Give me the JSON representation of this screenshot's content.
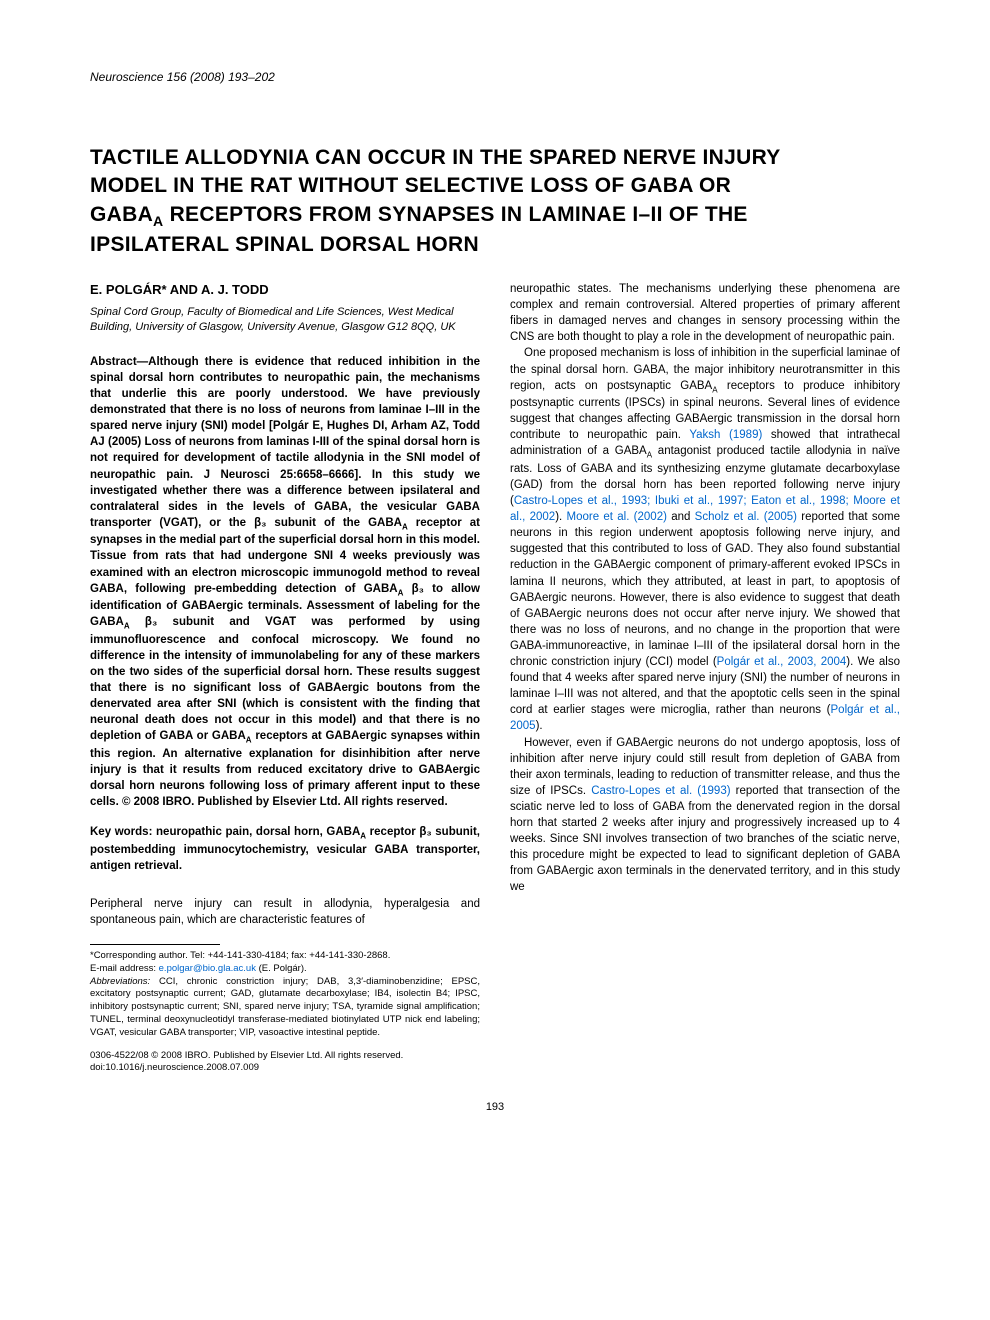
{
  "journal_info": "Neuroscience 156 (2008) 193–202",
  "title_line1": "TACTILE ALLODYNIA CAN OCCUR IN THE SPARED NERVE INJURY",
  "title_line2": "MODEL IN THE RAT WITHOUT SELECTIVE LOSS OF GABA OR",
  "title_line3_a": "GABA",
  "title_line3_sub": "A",
  "title_line3_b": " RECEPTORS FROM SYNAPSES IN LAMINAE I–II OF THE",
  "title_line4": "IPSILATERAL SPINAL DORSAL HORN",
  "authors": "E. POLGÁR* AND A. J. TODD",
  "affiliation": "Spinal Cord Group, Faculty of Biomedical and Life Sciences, West Medical Building, University of Glasgow, University Avenue, Glasgow G12 8QQ, UK",
  "abstract": "Abstract—Although there is evidence that reduced inhibition in the spinal dorsal horn contributes to neuropathic pain, the mechanisms that underlie this are poorly understood. We have previously demonstrated that there is no loss of neurons from laminae I–III in the spared nerve injury (SNI) model [Polgár E, Hughes DI, Arham AZ, Todd AJ (2005) Loss of neurons from laminas I-III of the spinal dorsal horn is not required for development of tactile allodynia in the SNI model of neuropathic pain. J Neurosci 25:6658–6666]. In this study we investigated whether there was a difference between ipsilateral and contralateral sides in the levels of GABA, the vesicular GABA transporter (VGAT), or the β₃ subunit of the GABA",
  "abstract_cont": " receptor at synapses in the medial part of the superficial dorsal horn in this model. Tissue from rats that had undergone SNI 4 weeks previously was examined with an electron microscopic immunogold method to reveal GABA, following pre-embedding detection of GABA",
  "abstract_cont2": " β₃ to allow identification of GABAergic terminals. Assessment of labeling for the GABA",
  "abstract_cont3": " β₃ subunit and VGAT was performed by using immunofluorescence and confocal microscopy. We found no difference in the intensity of immunolabeling for any of these markers on the two sides of the superficial dorsal horn. These results suggest that there is no significant loss of GABAergic boutons from the denervated area after SNI (which is consistent with the finding that neuronal death does not occur in this model) and that there is no depletion of GABA or GABA",
  "abstract_cont4": " receptors at GABAergic synapses within this region. An alternative explanation for disinhibition after nerve injury is that it results from reduced excitatory drive to GABAergic dorsal horn neurons following loss of primary afferent input to these cells. © 2008 IBRO. Published by Elsevier Ltd. All rights reserved.",
  "keywords": "Key words: neuropathic pain, dorsal horn, GABA",
  "keywords_cont": " receptor β₃ subunit, postembedding immunocytochemistry, vesicular GABA transporter, antigen retrieval.",
  "intro_p1": "Peripheral nerve injury can result in allodynia, hyperalgesia and spontaneous pain, which are characteristic features of",
  "right_p1": "neuropathic states. The mechanisms underlying these phenomena are complex and remain controversial. Altered properties of primary afferent fibers in damaged nerves and changes in sensory processing within the CNS are both thought to play a role in the development of neuropathic pain.",
  "right_p2a": "One proposed mechanism is loss of inhibition in the superficial laminae of the spinal dorsal horn. GABA, the major inhibitory neurotransmitter in this region, acts on postsynaptic GABA",
  "right_p2b": " receptors to produce inhibitory postsynaptic currents (IPSCs) in spinal neurons. Several lines of evidence suggest that changes affecting GABAergic transmission in the dorsal horn contribute to neuropathic pain. ",
  "right_cite1": "Yaksh (1989)",
  "right_p2c": " showed that intrathecal administration of a GABA",
  "right_p2d": " antagonist produced tactile allodynia in naïve rats. Loss of GABA and its synthesizing enzyme glutamate decarboxylase (GAD) from the dorsal horn has been reported following nerve injury (",
  "right_cite2": "Castro-Lopes et al., 1993; Ibuki et al., 1997; Eaton et al., 1998; Moore et al., 2002",
  "right_p2e": "). ",
  "right_cite3": "Moore et al. (2002)",
  "right_p2f": " and ",
  "right_cite4": "Scholz et al. (2005)",
  "right_p2g": " reported that some neurons in this region underwent apoptosis following nerve injury, and suggested that this contributed to loss of GAD. They also found substantial reduction in the GABAergic component of primary-afferent evoked IPSCs in lamina II neurons, which they attributed, at least in part, to apoptosis of GABAergic neurons. However, there is also evidence to suggest that death of GABAergic neurons does not occur after nerve injury. We showed that there was no loss of neurons, and no change in the proportion that were GABA-immunoreactive, in laminae I–III of the ipsilateral dorsal horn in the chronic constriction injury (CCI) model (",
  "right_cite5": "Polgár et al., 2003, 2004",
  "right_p2h": "). We also found that 4 weeks after spared nerve injury (SNI) the number of neurons in laminae I–III was not altered, and that the apoptotic cells seen in the spinal cord at earlier stages were microglia, rather than neurons (",
  "right_cite6": "Polgár et al., 2005",
  "right_p2i": ").",
  "right_p3a": "However, even if GABAergic neurons do not undergo apoptosis, loss of inhibition after nerve injury could still result from depletion of GABA from their axon terminals, leading to reduction of transmitter release, and thus the size of IPSCs. ",
  "right_cite7": "Castro-Lopes et al. (1993)",
  "right_p3b": " reported that transection of the sciatic nerve led to loss of GABA from the denervated region in the dorsal horn that started 2 weeks after injury and progressively increased up to 4 weeks. Since SNI involves transection of two branches of the sciatic nerve, this procedure might be expected to lead to significant depletion of GABA from GABAergic axon terminals in the denervated territory, and in this study we",
  "footnote_corresp": "*Corresponding author. Tel: +44-141-330-4184; fax: +44-141-330-2868.",
  "footnote_email_label": "E-mail address: ",
  "footnote_email": "e.polgar@bio.gla.ac.uk",
  "footnote_email_name": " (E. Polgár).",
  "footnote_abbrev_label": "Abbreviations: ",
  "footnote_abbrev": "CCI, chronic constriction injury; DAB, 3,3′-diaminobenzidine; EPSC, excitatory postsynaptic current; GAD, glutamate decarboxylase; IB4, isolectin B4; IPSC, inhibitory postsynaptic current; SNI, spared nerve injury; TSA, tyramide signal amplification; TUNEL, terminal deoxynucleotidyl transferase-mediated biotinylated UTP nick end labeling; VGAT, vesicular GABA transporter; VIP, vasoactive intestinal peptide.",
  "copyright": "0306-4522/08 © 2008 IBRO. Published by Elsevier Ltd. All rights reserved.",
  "doi": "doi:10.1016/j.neuroscience.2008.07.009",
  "page_number": "193",
  "sub_A": "A",
  "colors": {
    "link": "#0066cc",
    "text": "#000000",
    "background": "#ffffff"
  }
}
